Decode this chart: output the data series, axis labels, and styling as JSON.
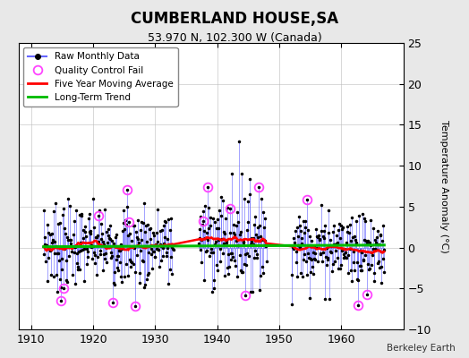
{
  "title": "CUMBERLAND HOUSE,SA",
  "subtitle": "53.970 N, 102.300 W (Canada)",
  "ylabel": "Temperature Anomaly (°C)",
  "xlabel_credit": "Berkeley Earth",
  "xlim": [
    1908,
    1970
  ],
  "ylim": [
    -10,
    25
  ],
  "yticks": [
    -10,
    -5,
    0,
    5,
    10,
    15,
    20,
    25
  ],
  "xticks": [
    1910,
    1920,
    1930,
    1940,
    1950,
    1960
  ],
  "bg_color": "#e8e8e8",
  "plot_bg_color": "#ffffff",
  "raw_line_color": "#6666ff",
  "raw_dot_color": "#000000",
  "qc_fail_color": "#ff44ff",
  "moving_avg_color": "#ff0000",
  "trend_color": "#00bb00",
  "title_fontsize": 12,
  "subtitle_fontsize": 9,
  "tick_fontsize": 9,
  "ylabel_fontsize": 8
}
